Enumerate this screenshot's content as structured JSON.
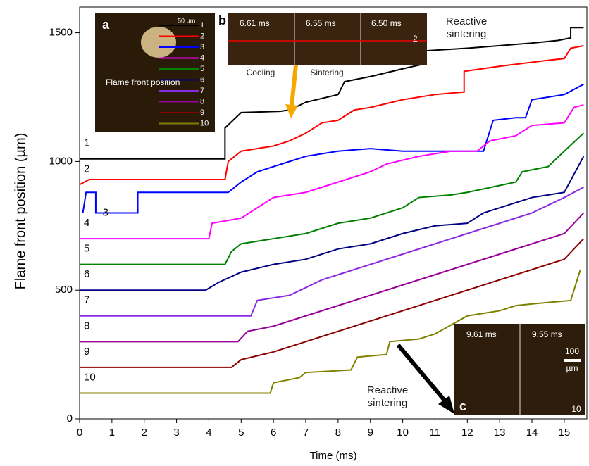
{
  "chart_data": {
    "type": "line",
    "x_label": "Time (ms)",
    "y_label": "Flame front position (µm)",
    "xlim": [
      0,
      15.7
    ],
    "ylim": [
      0,
      1600
    ],
    "xticks": [
      0,
      1,
      2,
      3,
      4,
      5,
      6,
      7,
      8,
      9,
      10,
      11,
      12,
      13,
      14,
      15
    ],
    "yticks": [
      0,
      500,
      1000,
      1500
    ],
    "series": [
      {
        "name": "1",
        "color": "#000000",
        "x": [
          0,
          4.5,
          4.5,
          5.0,
          6.2,
          6.5,
          7,
          8,
          8.2,
          9,
          10,
          10.7,
          10.7,
          12,
          13,
          14,
          14.8,
          15.2,
          15.2,
          15.6
        ],
        "values": [
          1010,
          1010,
          1130,
          1190,
          1195,
          1200,
          1230,
          1260,
          1310,
          1330,
          1360,
          1380,
          1430,
          1440,
          1450,
          1460,
          1470,
          1480,
          1520,
          1520
        ]
      },
      {
        "name": "2",
        "color": "#ff0000",
        "x": [
          0,
          0.3,
          4.5,
          4.6,
          5,
          6,
          6.5,
          7,
          7.5,
          8,
          8.5,
          9,
          10,
          11,
          11.9,
          11.9,
          13,
          14.3,
          15,
          15.2,
          15.6
        ],
        "values": [
          910,
          930,
          930,
          1000,
          1040,
          1060,
          1080,
          1110,
          1150,
          1160,
          1200,
          1210,
          1240,
          1260,
          1270,
          1350,
          1370,
          1390,
          1400,
          1440,
          1450
        ]
      },
      {
        "name": "3",
        "color": "#0000ff",
        "x": [
          0.1,
          0.2,
          0.5,
          0.5,
          1.8,
          1.8,
          4.6,
          5,
          5.5,
          6.5,
          7,
          8,
          9,
          10,
          12.5,
          12.8,
          13.5,
          13.8,
          14,
          15,
          15.6
        ],
        "values": [
          800,
          880,
          880,
          800,
          800,
          880,
          880,
          920,
          960,
          1000,
          1020,
          1040,
          1050,
          1040,
          1040,
          1160,
          1170,
          1170,
          1240,
          1260,
          1300
        ]
      },
      {
        "name": "4",
        "color": "#ff00ff",
        "x": [
          0,
          4,
          4.1,
          5,
          5.5,
          6,
          7,
          8,
          9,
          9.5,
          10.5,
          11.5,
          12.3,
          12.7,
          13.5,
          14,
          15,
          15.3,
          15.6
        ],
        "values": [
          700,
          700,
          760,
          780,
          820,
          860,
          880,
          920,
          960,
          990,
          1020,
          1040,
          1040,
          1080,
          1100,
          1140,
          1150,
          1210,
          1220
        ]
      },
      {
        "name": "5",
        "color": "#008000",
        "x": [
          0,
          4.5,
          4.7,
          5,
          6,
          7,
          8,
          9,
          10,
          10.5,
          11.5,
          12,
          13.5,
          13.7,
          14.5,
          15,
          15.6
        ],
        "values": [
          600,
          600,
          650,
          680,
          700,
          720,
          760,
          780,
          820,
          860,
          870,
          880,
          920,
          960,
          980,
          1040,
          1110
        ]
      },
      {
        "name": "6",
        "color": "#000080",
        "x": [
          0,
          3.9,
          4.3,
          5,
          6,
          7,
          8,
          9,
          10,
          11,
          12,
          12.5,
          13,
          14,
          15,
          15.6
        ],
        "values": [
          500,
          500,
          530,
          570,
          600,
          620,
          660,
          680,
          720,
          750,
          760,
          800,
          820,
          860,
          880,
          1020
        ]
      },
      {
        "name": "7",
        "color": "#8a2be2",
        "x": [
          0,
          5.3,
          5.5,
          6.5,
          7.5,
          8,
          9,
          10,
          11,
          12,
          13,
          14,
          15,
          15.6
        ],
        "values": [
          400,
          400,
          460,
          480,
          540,
          560,
          600,
          640,
          680,
          720,
          760,
          800,
          860,
          900
        ]
      },
      {
        "name": "8",
        "color": "#990099",
        "x": [
          0,
          4.9,
          5.2,
          6,
          7,
          8,
          9,
          10,
          11,
          12,
          13,
          14,
          15,
          15.6
        ],
        "values": [
          300,
          300,
          340,
          360,
          400,
          440,
          480,
          520,
          560,
          600,
          640,
          680,
          720,
          800
        ]
      },
      {
        "name": "9",
        "color": "#8b0000",
        "x": [
          0,
          4.7,
          5,
          6,
          7,
          8,
          9,
          10,
          11,
          12,
          13,
          14,
          15,
          15.6
        ],
        "values": [
          200,
          200,
          230,
          260,
          300,
          340,
          380,
          420,
          460,
          500,
          540,
          580,
          620,
          700
        ]
      },
      {
        "name": "10",
        "color": "#808000",
        "x": [
          0,
          5.9,
          6,
          6.8,
          7,
          8.4,
          8.6,
          9.5,
          9.6,
          10.5,
          11,
          12,
          13,
          13.5,
          14.3,
          15.2,
          15.5
        ],
        "values": [
          100,
          100,
          140,
          160,
          180,
          190,
          240,
          250,
          300,
          310,
          330,
          400,
          420,
          440,
          450,
          460,
          580
        ]
      }
    ],
    "insets": {
      "a": {
        "label": "a",
        "scale": "50 µm",
        "text": "Flame front position",
        "numbers": [
          "1",
          "2",
          "3",
          "4",
          "5",
          "6",
          "7",
          "8",
          "9",
          "10"
        ]
      },
      "b": {
        "label": "b",
        "frames": [
          "6.61 ms",
          "6.55 ms",
          "6.50 ms"
        ],
        "number": "2",
        "captions": [
          "Cooling",
          "Sintering"
        ],
        "note": "Reactive sintering"
      },
      "c": {
        "label": "c",
        "frames": [
          "9.61 ms",
          "9.55 ms"
        ],
        "scale": "100",
        "unit": "µm",
        "number": "10",
        "note": "Reactive sintering"
      }
    }
  }
}
